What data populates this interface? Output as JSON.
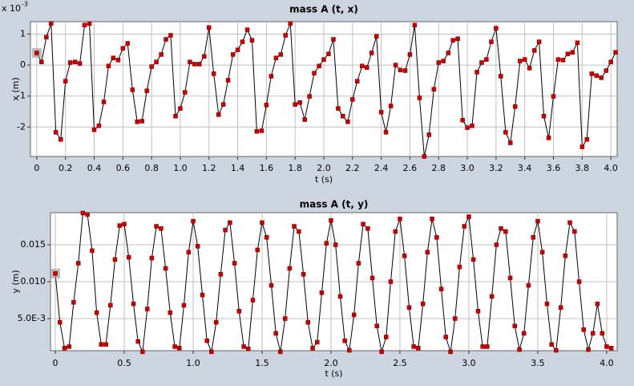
{
  "chart_data": [
    {
      "type": "line",
      "title": "mass A (t, x)",
      "x_label": "t (s)",
      "y_label": "x (m)",
      "y_multiplier": "x 10",
      "y_multiplier_exponent": "-3",
      "color": "#000000",
      "marker_color": "#cc0000",
      "grid": true,
      "xlim": [
        -0.044,
        4.044
      ],
      "ylim": [
        -2.95,
        1.4
      ],
      "xticks": [
        0,
        0.2,
        0.4,
        0.6,
        0.8,
        {
          "value": 1,
          "label": "1.0"
        },
        1.2,
        1.4,
        1.6,
        1.8,
        {
          "value": 2,
          "label": "2.0"
        },
        2.2,
        2.4,
        2.6,
        2.8,
        {
          "value": 3,
          "label": "3.0"
        },
        3.2,
        3.4,
        3.6,
        3.8,
        {
          "value": 4,
          "label": "4.0"
        }
      ],
      "yticks": [
        -2,
        -1,
        0,
        1
      ],
      "x": [
        0,
        0.033,
        0.067,
        0.1,
        0.133,
        0.167,
        0.2,
        0.233,
        0.267,
        0.3,
        0.333,
        0.367,
        0.4,
        0.433,
        0.467,
        0.5,
        0.533,
        0.567,
        0.6,
        0.633,
        0.667,
        0.7,
        0.733,
        0.767,
        0.8,
        0.833,
        0.867,
        0.9,
        0.933,
        0.967,
        1,
        1.033,
        1.067,
        1.1,
        1.133,
        1.167,
        1.2,
        1.233,
        1.267,
        1.3,
        1.333,
        1.367,
        1.4,
        1.433,
        1.467,
        1.5,
        1.533,
        1.567,
        1.6,
        1.633,
        1.667,
        1.7,
        1.733,
        1.767,
        1.8,
        1.833,
        1.867,
        1.9,
        1.933,
        1.967,
        2,
        2.033,
        2.067,
        2.1,
        2.133,
        2.167,
        2.2,
        2.233,
        2.267,
        2.3,
        2.333,
        2.367,
        2.4,
        2.433,
        2.467,
        2.5,
        2.533,
        2.567,
        2.6,
        2.633,
        2.667,
        2.7,
        2.733,
        2.767,
        2.8,
        2.833,
        2.867,
        2.9,
        2.933,
        2.967,
        3,
        3.033,
        3.067,
        3.1,
        3.133,
        3.167,
        3.2,
        3.233,
        3.267,
        3.3,
        3.333,
        3.367,
        3.4,
        3.433,
        3.467,
        3.5,
        3.533,
        3.567,
        3.6,
        3.633,
        3.667,
        3.7,
        3.733,
        3.767,
        3.8,
        3.833,
        3.867,
        3.9,
        3.933,
        3.967,
        4,
        4.033
      ],
      "values": [
        0.39,
        0.1,
        0.9,
        1.34,
        -2.17,
        -2.4,
        -0.52,
        0.08,
        0.1,
        0.05,
        1.29,
        1.34,
        -2.09,
        -1.96,
        -1.19,
        -0.03,
        0.23,
        0.16,
        0.54,
        0.7,
        -0.8,
        -1.83,
        -1.81,
        -0.83,
        -0.05,
        0.1,
        0.34,
        0.83,
        0.96,
        -1.65,
        -1.4,
        -0.88,
        0.1,
        0.03,
        0.03,
        0.28,
        1.21,
        -0.28,
        -1.6,
        -1.27,
        -0.49,
        0.34,
        0.49,
        0.75,
        1.14,
        0.8,
        -2.14,
        -2.12,
        -1.29,
        -0.36,
        0.23,
        0.34,
        0.96,
        1.34,
        -1.27,
        -1.21,
        -1.76,
        -1.01,
        -0.26,
        -0.03,
        0.18,
        0.36,
        0.83,
        -1.4,
        -1.65,
        -1.83,
        -1.11,
        -0.52,
        -0.03,
        -0.08,
        0.39,
        0.93,
        -1.52,
        -2.17,
        -1.32,
        0.0,
        -0.16,
        -0.18,
        0.34,
        1.29,
        -1.06,
        -2.95,
        -2.25,
        -0.78,
        0.08,
        0.13,
        0.39,
        0.8,
        0.85,
        -1.78,
        -2.02,
        -1.96,
        -0.23,
        0.08,
        0.18,
        0.75,
        1.19,
        -0.36,
        -2.17,
        -2.51,
        -1.34,
        0.13,
        0.18,
        -0.1,
        0.47,
        0.75,
        -1.65,
        -2.35,
        -1.01,
        0.18,
        0.16,
        0.36,
        0.41,
        0.72,
        -2.64,
        -2.4,
        -0.28,
        -0.34,
        -0.41,
        -0.18,
        0.1,
        0.41
      ]
    },
    {
      "type": "line",
      "title": "mass A (t, y)",
      "x_label": "t (s)",
      "y_label": "y (m)",
      "color": "#000000",
      "marker_color": "#cc0000",
      "grid": true,
      "xlim": [
        -0.035,
        4.076
      ],
      "ylim": [
        0.00065,
        0.01935
      ],
      "xticks": [
        0,
        0.5,
        {
          "value": 1,
          "label": "1.0"
        },
        1.5,
        {
          "value": 2,
          "label": "2.0"
        },
        2.5,
        {
          "value": 3,
          "label": "3.0"
        },
        3.5,
        {
          "value": 4,
          "label": "4.0"
        }
      ],
      "yticks": [
        {
          "value": 0.005,
          "label": "5.0E-3"
        },
        {
          "value": 0.01,
          "label": "0.010"
        },
        0.015
      ],
      "x": [
        0,
        0.033,
        0.067,
        0.1,
        0.133,
        0.167,
        0.2,
        0.233,
        0.267,
        0.3,
        0.333,
        0.367,
        0.4,
        0.433,
        0.467,
        0.5,
        0.533,
        0.567,
        0.6,
        0.633,
        0.667,
        0.7,
        0.733,
        0.767,
        0.8,
        0.833,
        0.867,
        0.9,
        0.933,
        0.967,
        1,
        1.033,
        1.067,
        1.1,
        1.133,
        1.167,
        1.2,
        1.233,
        1.267,
        1.3,
        1.333,
        1.367,
        1.4,
        1.433,
        1.467,
        1.5,
        1.533,
        1.567,
        1.6,
        1.633,
        1.667,
        1.7,
        1.733,
        1.767,
        1.8,
        1.833,
        1.867,
        1.9,
        1.933,
        1.967,
        2,
        2.033,
        2.067,
        2.1,
        2.133,
        2.167,
        2.2,
        2.233,
        2.267,
        2.3,
        2.333,
        2.367,
        2.4,
        2.433,
        2.467,
        2.5,
        2.533,
        2.567,
        2.6,
        2.633,
        2.667,
        2.7,
        2.733,
        2.767,
        2.8,
        2.833,
        2.867,
        2.9,
        2.933,
        2.967,
        3,
        3.033,
        3.067,
        3.1,
        3.133,
        3.167,
        3.2,
        3.233,
        3.267,
        3.3,
        3.333,
        3.367,
        3.4,
        3.433,
        3.467,
        3.5,
        3.533,
        3.567,
        3.6,
        3.633,
        3.667,
        3.7,
        3.733,
        3.767,
        3.8,
        3.833,
        3.867,
        3.9,
        3.933,
        3.967,
        4,
        4.033
      ],
      "values": [
        0.0111,
        0.0045,
        0.001,
        0.0012,
        0.0072,
        0.0125,
        0.0193,
        0.0191,
        0.0142,
        0.0058,
        0.0015,
        0.0015,
        0.0068,
        0.013,
        0.0176,
        0.0178,
        0.0133,
        0.007,
        0.0019,
        0.0005,
        0.0063,
        0.0132,
        0.0175,
        0.0172,
        0.0118,
        0.0058,
        0.0012,
        0.001,
        0.0068,
        0.014,
        0.0182,
        0.0148,
        0.0082,
        0.002,
        0.0005,
        0.0045,
        0.011,
        0.017,
        0.018,
        0.0125,
        0.006,
        0.0012,
        0.0009,
        0.0075,
        0.0143,
        0.018,
        0.016,
        0.0095,
        0.003,
        0.0005,
        0.005,
        0.0118,
        0.0175,
        0.0168,
        0.011,
        0.0045,
        0.001,
        0.0018,
        0.0085,
        0.0152,
        0.0183,
        0.015,
        0.008,
        0.002,
        0.0007,
        0.0055,
        0.0125,
        0.0178,
        0.0172,
        0.0105,
        0.004,
        0.0005,
        0.0025,
        0.01,
        0.0168,
        0.0185,
        0.0135,
        0.0065,
        0.0012,
        0.001,
        0.007,
        0.014,
        0.0185,
        0.016,
        0.009,
        0.0025,
        0.0005,
        0.005,
        0.012,
        0.0175,
        0.0188,
        0.013,
        0.006,
        0.0012,
        0.0012,
        0.008,
        0.015,
        0.0172,
        0.0168,
        0.0105,
        0.004,
        0.0008,
        0.003,
        0.0095,
        0.016,
        0.0182,
        0.014,
        0.007,
        0.0015,
        0.0007,
        0.0065,
        0.0135,
        0.018,
        0.0168,
        0.01,
        0.0035,
        0.0008,
        0.003,
        0.007,
        0.003,
        0.0012,
        0.001
      ]
    }
  ]
}
